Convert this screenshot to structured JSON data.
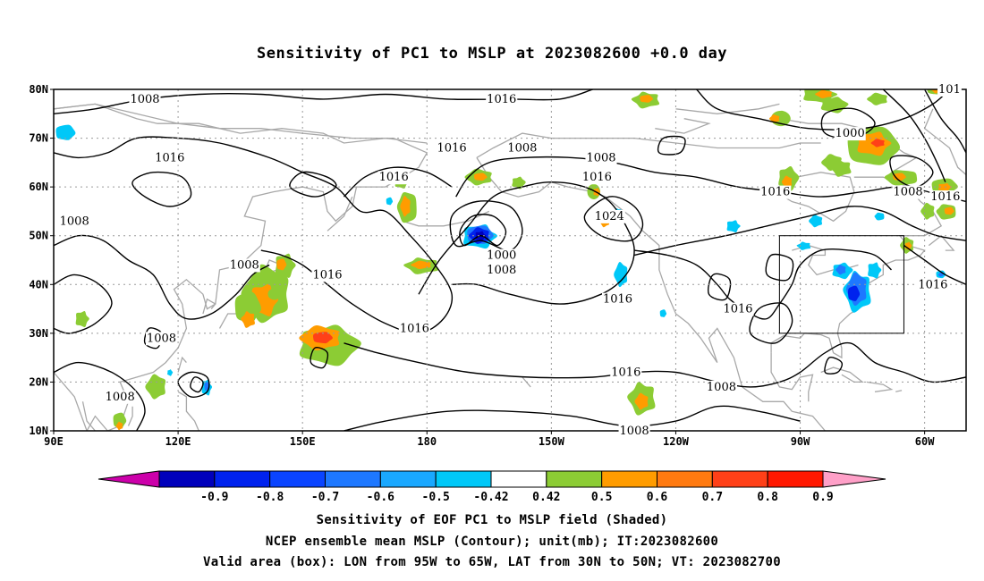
{
  "title": "Sensitivity of PC1 to MSLP at 2023082600 +0.0 day",
  "map": {
    "lat_ticks": [
      "80N",
      "70N",
      "60N",
      "50N",
      "40N",
      "30N",
      "20N",
      "10N"
    ],
    "lon_ticks": [
      "90E",
      "120E",
      "150E",
      "180",
      "150W",
      "120W",
      "90W",
      "60W"
    ],
    "lon_range": [
      90,
      310
    ],
    "lat_range": [
      10,
      80
    ],
    "valid_box": {
      "lon": [
        265,
        295
      ],
      "lat": [
        30,
        50
      ]
    },
    "contour_labels": [
      {
        "text": "1008",
        "lon": 112,
        "lat": 78
      },
      {
        "text": "1016",
        "lon": 198,
        "lat": 78
      },
      {
        "text": "101",
        "lon": 306,
        "lat": 80
      },
      {
        "text": "1000",
        "lon": 282,
        "lat": 71
      },
      {
        "text": "1016",
        "lon": 118,
        "lat": 66
      },
      {
        "text": "1016",
        "lon": 186,
        "lat": 68
      },
      {
        "text": "1008",
        "lon": 203,
        "lat": 68
      },
      {
        "text": "1008",
        "lon": 222,
        "lat": 66
      },
      {
        "text": "1016",
        "lon": 172,
        "lat": 62
      },
      {
        "text": "1016",
        "lon": 221,
        "lat": 62
      },
      {
        "text": "1016",
        "lon": 264,
        "lat": 59
      },
      {
        "text": "1008",
        "lon": 296,
        "lat": 59
      },
      {
        "text": "1016",
        "lon": 305,
        "lat": 58
      },
      {
        "text": "1008",
        "lon": 95,
        "lat": 53
      },
      {
        "text": "1024",
        "lon": 224,
        "lat": 54
      },
      {
        "text": "1000",
        "lon": 198,
        "lat": 46
      },
      {
        "text": "1008",
        "lon": 198,
        "lat": 43
      },
      {
        "text": "1008",
        "lon": 136,
        "lat": 44
      },
      {
        "text": "1016",
        "lon": 156,
        "lat": 42
      },
      {
        "text": "1016",
        "lon": 302,
        "lat": 40
      },
      {
        "text": "1016",
        "lon": 226,
        "lat": 37
      },
      {
        "text": "1016",
        "lon": 255,
        "lat": 35
      },
      {
        "text": "1016",
        "lon": 177,
        "lat": 31
      },
      {
        "text": "1008",
        "lon": 116,
        "lat": 29
      },
      {
        "text": "1016",
        "lon": 228,
        "lat": 22
      },
      {
        "text": "1008",
        "lon": 251,
        "lat": 19
      },
      {
        "text": "1008",
        "lon": 106,
        "lat": 17
      },
      {
        "text": "1008",
        "lon": 230,
        "lat": 10
      }
    ]
  },
  "colorbar": {
    "labels": [
      "-0.9",
      "-0.8",
      "-0.7",
      "-0.6",
      "-0.5",
      "-0.42",
      "0.42",
      "0.5",
      "0.6",
      "0.7",
      "0.8",
      "0.9"
    ],
    "colors": [
      "#cc00aa",
      "#0000bb",
      "#0022ee",
      "#0a44ff",
      "#1e78ff",
      "#1aa8ff",
      "#00c8f8",
      "#ffffff",
      "#8ccc34",
      "#ff9c00",
      "#ff7a10",
      "#ff4018",
      "#ff1800",
      "#ffa0c8"
    ]
  },
  "captions": {
    "line1": "Sensitivity of EOF PC1 to MSLP field (Shaded)",
    "line2": "NCEP ensemble mean MSLP (Contour); unit(mb); IT:2023082600",
    "line3": "Valid area (box): LON from 95W to 65W, LAT from 30N to 50N; VT: 2023082700"
  }
}
